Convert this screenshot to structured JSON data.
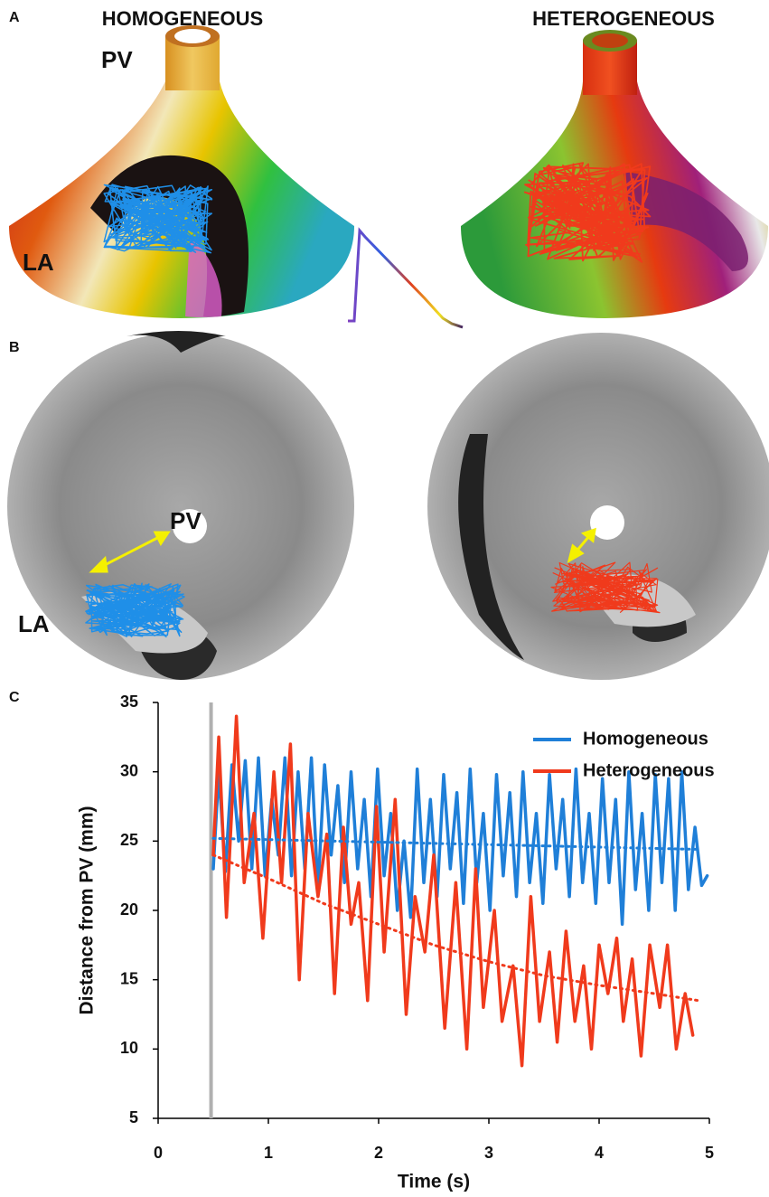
{
  "panel_a": {
    "label": "A",
    "left_title": "HOMOGENEOUS",
    "right_title": "HETEROGENEOUS",
    "pv": "PV",
    "la": "LA"
  },
  "panel_b": {
    "label": "B",
    "pv": "PV",
    "la": "LA"
  },
  "panel_c": {
    "label": "C"
  },
  "chart_data": {
    "type": "line",
    "xlabel": "Time (s)",
    "ylabel": "Distance from PV (mm)",
    "xlim": [
      0,
      5
    ],
    "xticks": [
      0,
      1,
      2,
      3,
      4,
      5
    ],
    "ylim": [
      5,
      35
    ],
    "yticks": [
      5,
      10,
      15,
      20,
      25,
      30,
      35
    ],
    "vline_x": 0.48,
    "vline_color": "#b0b0b0",
    "legend": "top-right",
    "series": [
      {
        "name": "Homogeneous",
        "color": "#1f7fd8",
        "x": [
          0.5,
          0.55,
          0.61,
          0.67,
          0.73,
          0.79,
          0.85,
          0.91,
          0.97,
          1.03,
          1.09,
          1.15,
          1.21,
          1.27,
          1.33,
          1.39,
          1.45,
          1.51,
          1.57,
          1.63,
          1.69,
          1.75,
          1.81,
          1.87,
          1.93,
          1.99,
          2.05,
          2.11,
          2.17,
          2.23,
          2.29,
          2.35,
          2.41,
          2.47,
          2.53,
          2.59,
          2.65,
          2.71,
          2.77,
          2.83,
          2.89,
          2.95,
          3.01,
          3.07,
          3.13,
          3.19,
          3.25,
          3.31,
          3.37,
          3.43,
          3.49,
          3.55,
          3.61,
          3.67,
          3.73,
          3.79,
          3.85,
          3.91,
          3.97,
          4.03,
          4.09,
          4.15,
          4.21,
          4.27,
          4.33,
          4.39,
          4.45,
          4.51,
          4.57,
          4.63,
          4.69,
          4.75,
          4.81,
          4.87,
          4.93,
          4.98
        ],
        "values": [
          23,
          30,
          22.8,
          30.5,
          25,
          30.8,
          23,
          31,
          22.5,
          28,
          24,
          31,
          22.5,
          30,
          23,
          31,
          21.5,
          30.5,
          24,
          29,
          22,
          30,
          23,
          28,
          21,
          30.2,
          22.5,
          27,
          20,
          25,
          19.5,
          30.2,
          22,
          28,
          21,
          29.8,
          23,
          28.5,
          20.5,
          30.2,
          22,
          27,
          20,
          29.8,
          22.5,
          28.5,
          21,
          30,
          22,
          27,
          20.5,
          29.8,
          23,
          28,
          21,
          30.2,
          22,
          27,
          20.5,
          29.5,
          22,
          28,
          19,
          30,
          21.5,
          27,
          20,
          29.8,
          22,
          29.5,
          20,
          30,
          21.5,
          26,
          21.8,
          22.5
        ]
      },
      {
        "name": "Heterogeneous",
        "color": "#f03a1c",
        "x": [
          0.5,
          0.55,
          0.62,
          0.71,
          0.78,
          0.87,
          0.95,
          1.05,
          1.12,
          1.2,
          1.28,
          1.36,
          1.45,
          1.53,
          1.6,
          1.68,
          1.75,
          1.82,
          1.9,
          1.98,
          2.05,
          2.15,
          2.25,
          2.33,
          2.42,
          2.5,
          2.6,
          2.7,
          2.8,
          2.88,
          2.95,
          3.05,
          3.12,
          3.22,
          3.3,
          3.38,
          3.46,
          3.55,
          3.62,
          3.7,
          3.78,
          3.86,
          3.93,
          4.0,
          4.08,
          4.16,
          4.22,
          4.3,
          4.38,
          4.46,
          4.55,
          4.62,
          4.7,
          4.78,
          4.85
        ],
        "values": [
          24,
          32.5,
          19.5,
          34,
          22,
          27,
          18,
          30,
          22,
          32,
          15,
          27,
          21,
          25.5,
          14,
          26,
          19,
          22,
          13.5,
          27.5,
          17,
          28,
          12.5,
          21,
          17,
          24,
          11.5,
          22,
          10,
          23,
          13,
          20,
          12,
          16,
          8.8,
          21,
          12,
          17,
          10.5,
          18.5,
          12,
          16,
          10,
          17.5,
          14,
          18,
          12,
          16.5,
          9.5,
          17.5,
          13,
          17.5,
          10,
          14,
          11
        ]
      },
      {
        "color": "#1f7fd8",
        "style": "dotted",
        "x": [
          0.5,
          4.9
        ],
        "values": [
          25.2,
          24.4
        ]
      },
      {
        "color": "#f03a1c",
        "style": "dotted",
        "x": [
          0.5,
          1,
          1.5,
          2,
          2.5,
          3,
          3.5,
          4,
          4.5,
          4.9
        ],
        "values": [
          24,
          22.3,
          20.5,
          19,
          17.5,
          16.3,
          15.3,
          14.6,
          14,
          13.5
        ]
      }
    ]
  }
}
